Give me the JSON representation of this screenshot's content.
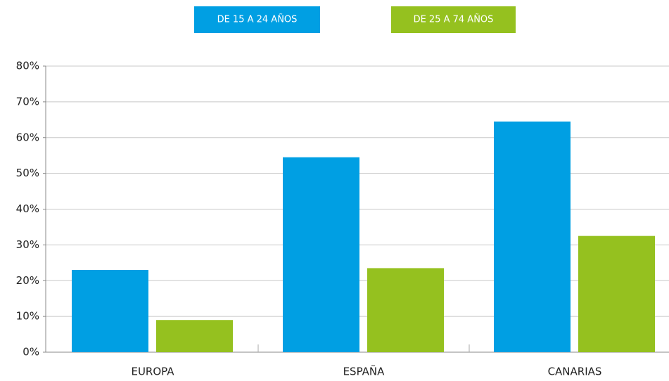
{
  "chart_data": {
    "type": "bar",
    "categories": [
      "EUROPA",
      "ESPAÑA",
      "CANARIAS"
    ],
    "series": [
      {
        "name": "DE 15 A 24 AÑOS",
        "color": "#009fe3",
        "values": [
          23,
          54.5,
          64.5
        ]
      },
      {
        "name": "DE 25 A 74 AÑOS",
        "color": "#95c11f",
        "values": [
          9,
          23.5,
          32.5
        ]
      }
    ],
    "ylim": [
      0,
      80
    ],
    "yticks": [
      {
        "value": 0,
        "label": "0%"
      },
      {
        "value": 10,
        "label": "10%"
      },
      {
        "value": 20,
        "label": "20%"
      },
      {
        "value": 30,
        "label": "30%"
      },
      {
        "value": 40,
        "label": "40%"
      },
      {
        "value": 50,
        "label": "50%"
      },
      {
        "value": 60,
        "label": "60%"
      },
      {
        "value": 70,
        "label": "70%"
      },
      {
        "value": 80,
        "label": "80%"
      }
    ],
    "grid": true,
    "legend": "top"
  }
}
